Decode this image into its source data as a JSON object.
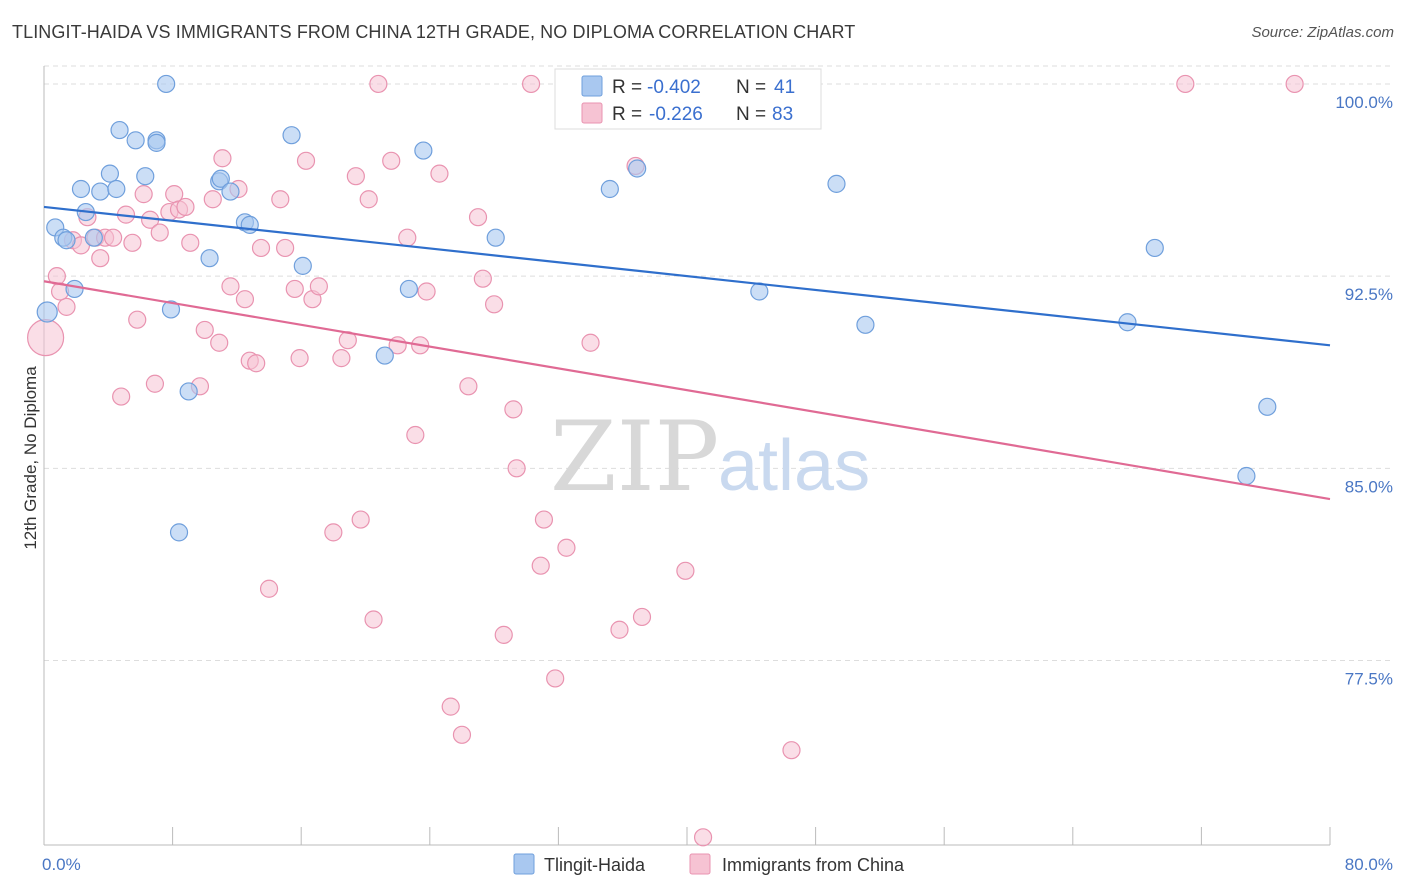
{
  "title": "TLINGIT-HAIDA VS IMMIGRANTS FROM CHINA 12TH GRADE, NO DIPLOMA CORRELATION CHART",
  "source": "Source: ZipAtlas.com",
  "watermark": {
    "zip": "ZIP",
    "atlas": "atlas"
  },
  "colors": {
    "blue_fill": "#a9c8f0",
    "blue_stroke": "#6f9fdc",
    "blue_line": "#2f6fcc",
    "pink_fill": "#f6c3d3",
    "pink_stroke": "#e993b0",
    "pink_line": "#e06a94",
    "grid": "#dddddd",
    "tick_text": "#4a77c4"
  },
  "legend_top": {
    "rows": [
      {
        "r_label": "R = ",
        "r_value": "-0.402",
        "n_label": "N = ",
        "n_value": "41"
      },
      {
        "r_label": "R = ",
        "r_value": "-0.226",
        "n_label": "N = ",
        "n_value": "83"
      }
    ]
  },
  "legend_bottom": {
    "series1": "Tlingit-Haida",
    "series2": "Immigrants from China"
  },
  "chart_data": {
    "type": "scatter",
    "title": "TLINGIT-HAIDA VS IMMIGRANTS FROM CHINA 12TH GRADE, NO DIPLOMA CORRELATION CHART",
    "xlabel": "",
    "ylabel": "12th Grade, No Diploma",
    "xlim": [
      0,
      80
    ],
    "ylim": [
      70.3,
      100.7
    ],
    "x_tick_labels": [
      "0.0%",
      "80.0%"
    ],
    "y_ticks": [
      77.5,
      85.0,
      92.5,
      100.0
    ],
    "y_tick_labels": [
      "77.5%",
      "85.0%",
      "92.5%",
      "100.0%"
    ],
    "grid": true,
    "series": [
      {
        "name": "Tlingit-Haida",
        "color": "#a9c8f0",
        "trend": [
          [
            0,
            95.2
          ],
          [
            80,
            89.8
          ]
        ],
        "points": [
          [
            0.2,
            91.1
          ],
          [
            0.7,
            94.4
          ],
          [
            1.2,
            94.0
          ],
          [
            1.4,
            93.9
          ],
          [
            1.9,
            92.0
          ],
          [
            2.3,
            95.9
          ],
          [
            2.6,
            95.0
          ],
          [
            3.1,
            94.0
          ],
          [
            3.5,
            95.8
          ],
          [
            4.1,
            96.5
          ],
          [
            4.5,
            95.9
          ],
          [
            4.7,
            98.2
          ],
          [
            5.7,
            97.8
          ],
          [
            6.3,
            96.4
          ],
          [
            7.0,
            97.8
          ],
          [
            7.0,
            97.7
          ],
          [
            7.6,
            100.0
          ],
          [
            7.9,
            91.2
          ],
          [
            8.4,
            82.5
          ],
          [
            9.0,
            88.0
          ],
          [
            10.3,
            93.2
          ],
          [
            10.9,
            96.2
          ],
          [
            11.0,
            96.3
          ],
          [
            11.6,
            95.8
          ],
          [
            12.5,
            94.6
          ],
          [
            12.8,
            94.5
          ],
          [
            15.4,
            98.0
          ],
          [
            16.1,
            92.9
          ],
          [
            21.2,
            89.4
          ],
          [
            22.7,
            92.0
          ],
          [
            23.6,
            97.4
          ],
          [
            28.1,
            94.0
          ],
          [
            35.2,
            95.9
          ],
          [
            36.9,
            96.7
          ],
          [
            44.5,
            91.9
          ],
          [
            49.3,
            96.1
          ],
          [
            51.1,
            90.6
          ],
          [
            69.1,
            93.6
          ],
          [
            67.4,
            90.7
          ],
          [
            76.1,
            87.4
          ],
          [
            74.8,
            84.7
          ]
        ]
      },
      {
        "name": "Immigrants from China",
        "color": "#f6c3d3",
        "trend": [
          [
            0,
            92.3
          ],
          [
            80,
            83.8
          ]
        ],
        "points": [
          [
            0.1,
            90.1
          ],
          [
            0.8,
            92.5
          ],
          [
            1.4,
            91.3
          ],
          [
            1.8,
            93.9
          ],
          [
            2.3,
            93.7
          ],
          [
            2.7,
            94.8
          ],
          [
            3.2,
            94.0
          ],
          [
            3.5,
            93.2
          ],
          [
            3.8,
            94.0
          ],
          [
            4.3,
            94.0
          ],
          [
            4.8,
            87.8
          ],
          [
            5.1,
            94.9
          ],
          [
            5.5,
            93.8
          ],
          [
            5.8,
            90.8
          ],
          [
            6.2,
            95.7
          ],
          [
            6.6,
            94.7
          ],
          [
            6.9,
            88.3
          ],
          [
            7.2,
            94.2
          ],
          [
            7.8,
            95.0
          ],
          [
            8.1,
            95.7
          ],
          [
            8.4,
            95.1
          ],
          [
            8.8,
            95.2
          ],
          [
            9.1,
            93.8
          ],
          [
            9.7,
            88.2
          ],
          [
            10.0,
            90.4
          ],
          [
            10.5,
            95.5
          ],
          [
            10.9,
            89.9
          ],
          [
            11.1,
            97.1
          ],
          [
            11.6,
            92.1
          ],
          [
            12.1,
            95.9
          ],
          [
            12.5,
            91.6
          ],
          [
            12.8,
            89.2
          ],
          [
            13.2,
            89.1
          ],
          [
            13.5,
            93.6
          ],
          [
            14.0,
            80.3
          ],
          [
            14.7,
            95.5
          ],
          [
            15.0,
            93.6
          ],
          [
            15.6,
            92.0
          ],
          [
            15.9,
            89.3
          ],
          [
            16.3,
            97.0
          ],
          [
            16.7,
            91.6
          ],
          [
            17.1,
            92.1
          ],
          [
            18.0,
            82.5
          ],
          [
            18.5,
            89.3
          ],
          [
            18.9,
            90.0
          ],
          [
            19.4,
            96.4
          ],
          [
            19.7,
            83.0
          ],
          [
            20.2,
            95.5
          ],
          [
            20.5,
            79.1
          ],
          [
            20.8,
            100.0
          ],
          [
            21.6,
            97.0
          ],
          [
            22.0,
            89.8
          ],
          [
            22.6,
            94.0
          ],
          [
            23.1,
            86.3
          ],
          [
            23.4,
            89.8
          ],
          [
            23.8,
            91.9
          ],
          [
            24.6,
            96.5
          ],
          [
            25.3,
            75.7
          ],
          [
            26.0,
            74.6
          ],
          [
            26.4,
            88.2
          ],
          [
            27.0,
            94.8
          ],
          [
            27.3,
            92.4
          ],
          [
            28.0,
            91.4
          ],
          [
            28.6,
            78.5
          ],
          [
            29.2,
            87.3
          ],
          [
            29.4,
            85.0
          ],
          [
            30.3,
            100.0
          ],
          [
            30.9,
            81.2
          ],
          [
            31.1,
            83.0
          ],
          [
            31.8,
            76.8
          ],
          [
            32.5,
            81.9
          ],
          [
            33.0,
            100.0
          ],
          [
            33.6,
            99.2
          ],
          [
            34.0,
            89.9
          ],
          [
            35.8,
            78.7
          ],
          [
            36.8,
            96.8
          ],
          [
            37.2,
            79.2
          ],
          [
            39.9,
            81.0
          ],
          [
            41.0,
            70.6
          ],
          [
            46.5,
            74.0
          ],
          [
            71.0,
            100.0
          ],
          [
            77.8,
            100.0
          ],
          [
            1.0,
            91.9
          ]
        ]
      }
    ]
  }
}
